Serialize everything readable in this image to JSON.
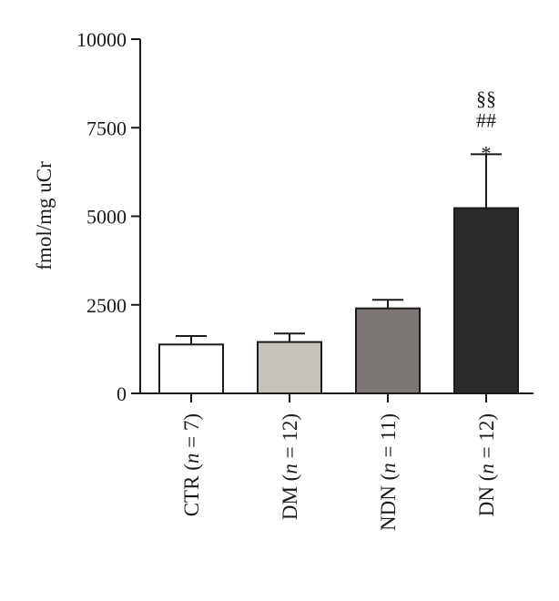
{
  "chart_data": {
    "type": "bar",
    "title": "",
    "xlabel": "",
    "ylabel": "fmol/mg uCr",
    "ylim": [
      0,
      10000
    ],
    "yticks": [
      0,
      2500,
      5000,
      7500,
      10000
    ],
    "grid": false,
    "categories": [
      {
        "name": "CTR",
        "n": "n",
        "rest": " = 7)"
      },
      {
        "name": "DM",
        "n": "n",
        "rest": " = 12)"
      },
      {
        "name": "NDN",
        "n": "n",
        "rest": " = 11)"
      },
      {
        "name": "DN",
        "n": "n",
        "rest": " = 12)"
      }
    ],
    "values": [
      1380,
      1450,
      2400,
      5230
    ],
    "errors": [
      240,
      240,
      240,
      1520
    ],
    "colors": [
      "#ffffff",
      "#c7c1bc",
      "#7b7674",
      "#2b2b2b"
    ],
    "annotations": [
      {
        "category_index": 3,
        "lines": [
          "§§",
          "##",
          "*"
        ]
      }
    ]
  }
}
